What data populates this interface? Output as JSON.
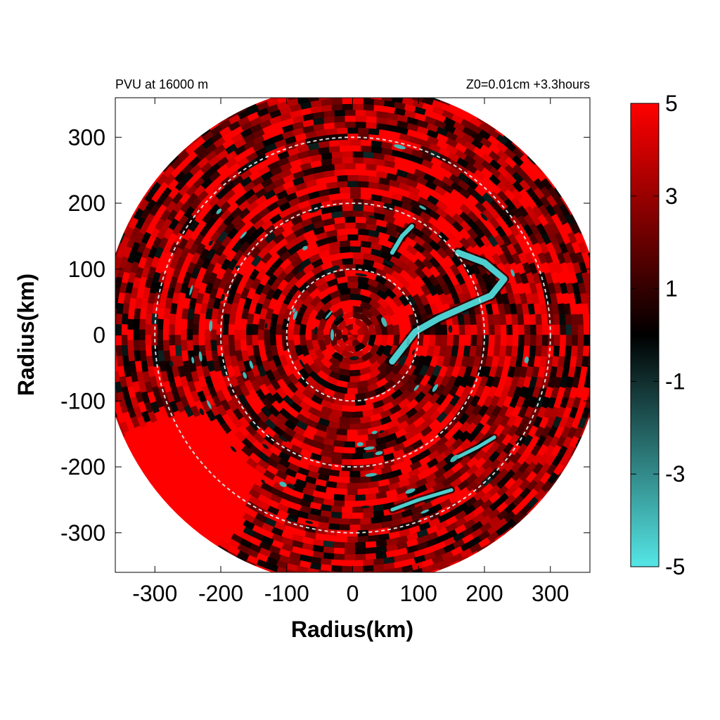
{
  "chart_data": {
    "type": "heatmap",
    "title_left": "PVU at 16000 m",
    "title_right": "Z0=0.01cm  +3.3hours",
    "xlabel": "Radius(km)",
    "ylabel": "Radius(km)",
    "xlim": [
      -360,
      360
    ],
    "ylim": [
      -360,
      360
    ],
    "x_ticks": [
      -300,
      -200,
      -100,
      0,
      100,
      200,
      300
    ],
    "y_ticks": [
      300,
      200,
      100,
      0,
      -100,
      -200,
      -300
    ],
    "x_tick_labels": [
      "-300",
      "-200",
      "-100",
      "0",
      "100",
      "200",
      "300"
    ],
    "y_tick_labels": [
      "300",
      "200",
      "100",
      "0",
      "-100",
      "-200",
      "-300"
    ],
    "data_radius_km": 380,
    "range_rings_km": [
      100,
      200,
      300
    ],
    "colorbar": {
      "range": [
        -5,
        5
      ],
      "tick_values": [
        5,
        3,
        1,
        -1,
        -3,
        -5
      ],
      "tick_labels": [
        "5",
        "3",
        "1",
        "-1",
        "-3",
        "-5"
      ],
      "colors": [
        "#55e6e6",
        "#000000",
        "#ff0000"
      ]
    },
    "features": {
      "background_pv": 3.5,
      "spiral_band_pv": -4.5,
      "spiral_band_path_km": [
        [
          60,
          -40
        ],
        [
          95,
          5
        ],
        [
          130,
          25
        ],
        [
          175,
          45
        ],
        [
          210,
          60
        ],
        [
          230,
          85
        ],
        [
          200,
          110
        ],
        [
          160,
          125
        ]
      ],
      "upper_arc_path_km": [
        [
          60,
          125
        ],
        [
          75,
          150
        ],
        [
          90,
          165
        ]
      ],
      "lower_arc_path_km": [
        [
          160,
          -185
        ],
        [
          190,
          -170
        ],
        [
          215,
          -155
        ]
      ],
      "lower_streak_path_km": [
        [
          60,
          -265
        ],
        [
          100,
          -250
        ],
        [
          150,
          -235
        ]
      ],
      "strong_region_center_km": [
        -260,
        -230
      ]
    }
  }
}
